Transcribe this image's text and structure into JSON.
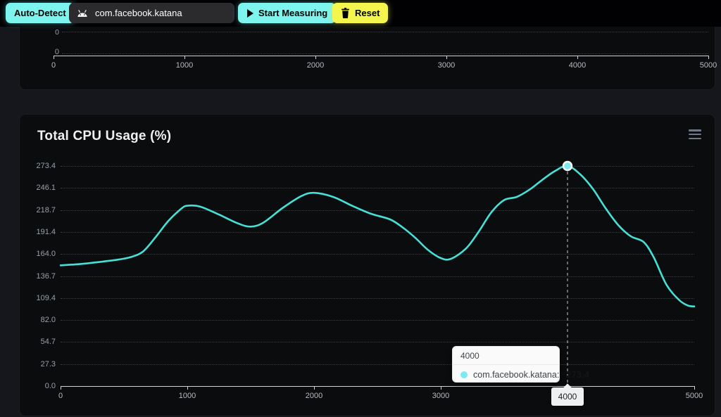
{
  "toolbar": {
    "auto_detect_label": "Auto-Detect",
    "package_value": "com.facebook.katana",
    "start_measuring_label": "Start Measuring",
    "reset_label": "Reset"
  },
  "top_chart": {
    "y_labels": [
      "0",
      "0"
    ],
    "x_ticks": [
      "0",
      "1000",
      "2000",
      "3000",
      "4000",
      "5000"
    ]
  },
  "main_chart": {
    "title": "Total CPU Usage (%)",
    "y_ticks": [
      "273.4",
      "246.1",
      "218.7",
      "191.4",
      "164.0",
      "136.7",
      "109.4",
      "82.0",
      "54.7",
      "27.3",
      "0.0"
    ],
    "x_ticks": [
      "0",
      "1000",
      "2000",
      "3000",
      "4000",
      "5000"
    ],
    "tooltip": {
      "header": "4000",
      "series_label": "com.facebook.katana:",
      "value": "273.4"
    },
    "axis_pointer_label": "4000"
  },
  "colors": {
    "accent_cyan": "#7df5ee",
    "accent_yellow": "#f4f64d",
    "line_cyan": "#45e0d6",
    "marker_cyan": "#7fe9f2"
  },
  "chart_data": {
    "type": "line",
    "title": "Total CPU Usage (%)",
    "x_range": [
      0,
      5000
    ],
    "y_range": [
      0,
      273.4
    ],
    "x_ticks": [
      0,
      1000,
      2000,
      3000,
      4000,
      5000
    ],
    "y_ticks": [
      273.4,
      246.1,
      218.7,
      191.4,
      164.0,
      136.7,
      109.4,
      82.0,
      54.7,
      27.3,
      0.0
    ],
    "grid": "horizontal-dotted",
    "legend_position": "none",
    "series": [
      {
        "name": "com.facebook.katana",
        "color": "#45e0d6",
        "points": [
          [
            0,
            150
          ],
          [
            150,
            151.5
          ],
          [
            300,
            154
          ],
          [
            450,
            157
          ],
          [
            550,
            160
          ],
          [
            650,
            167
          ],
          [
            750,
            185
          ],
          [
            850,
            205
          ],
          [
            950,
            220
          ],
          [
            1000,
            224
          ],
          [
            1100,
            223
          ],
          [
            1250,
            213
          ],
          [
            1400,
            202
          ],
          [
            1500,
            198
          ],
          [
            1600,
            203
          ],
          [
            1750,
            221
          ],
          [
            1900,
            236
          ],
          [
            2000,
            240
          ],
          [
            2150,
            235
          ],
          [
            2300,
            224
          ],
          [
            2450,
            214
          ],
          [
            2600,
            207
          ],
          [
            2700,
            197
          ],
          [
            2800,
            184
          ],
          [
            2900,
            169
          ],
          [
            3000,
            159
          ],
          [
            3080,
            158
          ],
          [
            3200,
            171
          ],
          [
            3300,
            192
          ],
          [
            3400,
            216
          ],
          [
            3500,
            231
          ],
          [
            3600,
            235
          ],
          [
            3700,
            244
          ],
          [
            3800,
            256
          ],
          [
            3900,
            267
          ],
          [
            4000,
            273.4
          ],
          [
            4100,
            263
          ],
          [
            4200,
            245
          ],
          [
            4300,
            221
          ],
          [
            4400,
            200
          ],
          [
            4500,
            186
          ],
          [
            4600,
            179
          ],
          [
            4680,
            160
          ],
          [
            4780,
            126
          ],
          [
            4880,
            107
          ],
          [
            4950,
            100
          ],
          [
            5000,
            99
          ]
        ]
      }
    ],
    "highlight_point": {
      "x": 4000,
      "y": 273.4
    }
  }
}
